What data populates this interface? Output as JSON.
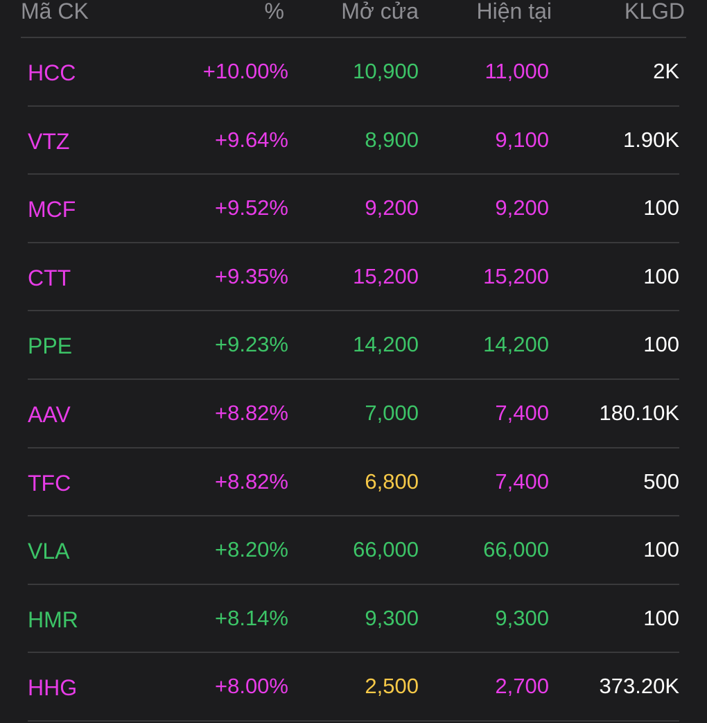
{
  "colors": {
    "ceiling": "#e83ce8",
    "up": "#3cc467",
    "reference": "#f7c948",
    "volume": "#ffffff",
    "header": "#8e8e93",
    "background": "#1c1c1e",
    "divider": "#3a3a3c"
  },
  "header": {
    "symbol": "Mã CK",
    "percent": "%",
    "open": "Mở cửa",
    "current": "Hiện tại",
    "volume": "KLGD"
  },
  "rows": [
    {
      "symbol": "HCC",
      "percent": "+10.00%",
      "open": "10,900",
      "current": "11,000",
      "volume": "2K",
      "symbol_color": "ceiling",
      "percent_color": "ceiling",
      "open_color": "up",
      "current_color": "ceiling"
    },
    {
      "symbol": "VTZ",
      "percent": "+9.64%",
      "open": "8,900",
      "current": "9,100",
      "volume": "1.90K",
      "symbol_color": "ceiling",
      "percent_color": "ceiling",
      "open_color": "up",
      "current_color": "ceiling"
    },
    {
      "symbol": "MCF",
      "percent": "+9.52%",
      "open": "9,200",
      "current": "9,200",
      "volume": "100",
      "symbol_color": "ceiling",
      "percent_color": "ceiling",
      "open_color": "ceiling",
      "current_color": "ceiling"
    },
    {
      "symbol": "CTT",
      "percent": "+9.35%",
      "open": "15,200",
      "current": "15,200",
      "volume": "100",
      "symbol_color": "ceiling",
      "percent_color": "ceiling",
      "open_color": "ceiling",
      "current_color": "ceiling"
    },
    {
      "symbol": "PPE",
      "percent": "+9.23%",
      "open": "14,200",
      "current": "14,200",
      "volume": "100",
      "symbol_color": "up",
      "percent_color": "up",
      "open_color": "up",
      "current_color": "up"
    },
    {
      "symbol": "AAV",
      "percent": "+8.82%",
      "open": "7,000",
      "current": "7,400",
      "volume": "180.10K",
      "symbol_color": "ceiling",
      "percent_color": "ceiling",
      "open_color": "up",
      "current_color": "ceiling"
    },
    {
      "symbol": "TFC",
      "percent": "+8.82%",
      "open": "6,800",
      "current": "7,400",
      "volume": "500",
      "symbol_color": "ceiling",
      "percent_color": "ceiling",
      "open_color": "reference",
      "current_color": "ceiling"
    },
    {
      "symbol": "VLA",
      "percent": "+8.20%",
      "open": "66,000",
      "current": "66,000",
      "volume": "100",
      "symbol_color": "up",
      "percent_color": "up",
      "open_color": "up",
      "current_color": "up"
    },
    {
      "symbol": "HMR",
      "percent": "+8.14%",
      "open": "9,300",
      "current": "9,300",
      "volume": "100",
      "symbol_color": "up",
      "percent_color": "up",
      "open_color": "up",
      "current_color": "up"
    },
    {
      "symbol": "HHG",
      "percent": "+8.00%",
      "open": "2,500",
      "current": "2,700",
      "volume": "373.20K",
      "symbol_color": "ceiling",
      "percent_color": "ceiling",
      "open_color": "reference",
      "current_color": "ceiling"
    }
  ]
}
